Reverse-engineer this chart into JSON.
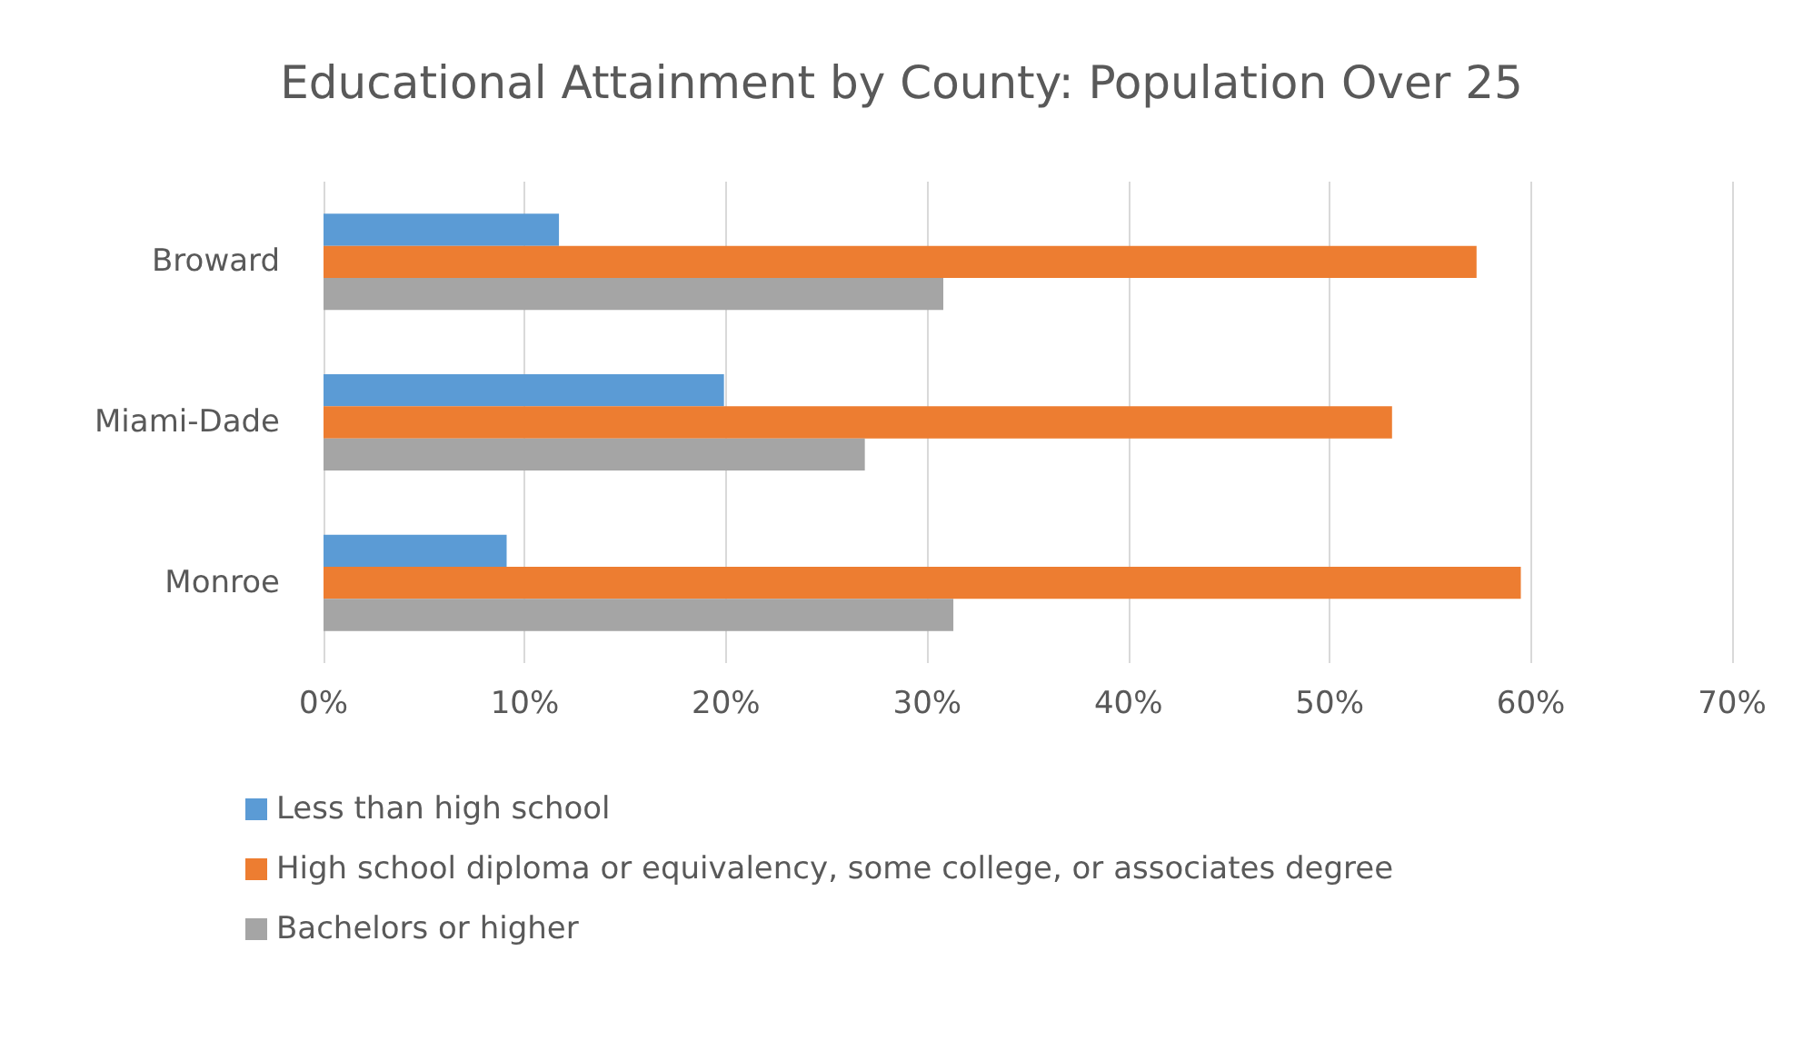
{
  "chart_data": {
    "type": "bar",
    "orientation": "horizontal",
    "title": "Educational Attainment by County: Population Over 25",
    "categories": [
      "Broward",
      "Miami-Dade",
      "Monroe"
    ],
    "series": [
      {
        "name": "Less than high school",
        "color": "#5b9bd5",
        "values": [
          11.7,
          19.9,
          9.1
        ]
      },
      {
        "name": "High school diploma or equivalency, some college, or associates degree",
        "color": "#ed7d31",
        "values": [
          57.3,
          53.1,
          59.5
        ]
      },
      {
        "name": "Bachelors or higher",
        "color": "#a5a5a5",
        "values": [
          30.8,
          26.9,
          31.3
        ]
      }
    ],
    "xlim": [
      0,
      70
    ],
    "xticks": [
      {
        "value": 0,
        "label": "0%"
      },
      {
        "value": 10,
        "label": "10%"
      },
      {
        "value": 20,
        "label": "20%"
      },
      {
        "value": 30,
        "label": "30%"
      },
      {
        "value": 40,
        "label": "40%"
      },
      {
        "value": 50,
        "label": "50%"
      },
      {
        "value": 60,
        "label": "60%"
      },
      {
        "value": 70,
        "label": "70%"
      }
    ],
    "grid": "x",
    "legend": "bottom"
  }
}
